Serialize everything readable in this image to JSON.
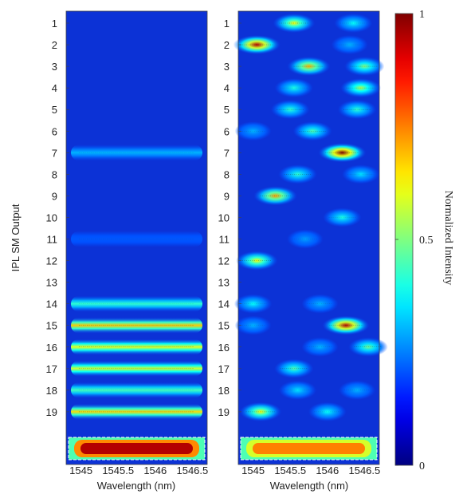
{
  "chart_data": [
    {
      "type": "heatmap",
      "ylabel": "IPL SM Output",
      "xlabel": "Wavelength (nm)",
      "xlim": [
        1544.8,
        1546.7
      ],
      "x_ticks": [
        "1545",
        "1545.5",
        "1546",
        "1546.5"
      ],
      "x_tick_values": [
        1545,
        1545.5,
        1546,
        1546.5
      ],
      "rows": [
        "1",
        "2",
        "3",
        "4",
        "5",
        "6",
        "7",
        "8",
        "9",
        "10",
        "11",
        "12",
        "13",
        "14",
        "15",
        "16",
        "17",
        "18",
        "19"
      ],
      "intensity_by_row": [
        0.2,
        0.2,
        0.2,
        0.2,
        0.2,
        0.2,
        0.3,
        0.2,
        0.2,
        0.2,
        0.21,
        0.2,
        0.2,
        0.42,
        0.68,
        0.6,
        0.58,
        0.44,
        0.66
      ],
      "reference_band_intensity": 0.95
    },
    {
      "type": "heatmap",
      "xlabel": "Wavelength (nm)",
      "xlim": [
        1544.8,
        1546.7
      ],
      "x_ticks": [
        "1545",
        "1545.5",
        "1546",
        "1546.5"
      ],
      "x_tick_values": [
        1545,
        1545.5,
        1546,
        1546.5
      ],
      "rows": [
        "1",
        "2",
        "3",
        "4",
        "5",
        "6",
        "7",
        "8",
        "9",
        "10",
        "11",
        "12",
        "13",
        "14",
        "15",
        "16",
        "17",
        "18",
        "19"
      ],
      "peaks": [
        {
          "row": 1,
          "wavelength": 1545.55,
          "intensity": 0.62
        },
        {
          "row": 1,
          "wavelength": 1546.35,
          "intensity": 0.38
        },
        {
          "row": 2,
          "wavelength": 1545.05,
          "intensity": 0.95
        },
        {
          "row": 2,
          "wavelength": 1546.3,
          "intensity": 0.3
        },
        {
          "row": 3,
          "wavelength": 1545.75,
          "intensity": 0.7
        },
        {
          "row": 3,
          "wavelength": 1546.5,
          "intensity": 0.5
        },
        {
          "row": 4,
          "wavelength": 1545.55,
          "intensity": 0.4
        },
        {
          "row": 4,
          "wavelength": 1546.45,
          "intensity": 0.55
        },
        {
          "row": 5,
          "wavelength": 1545.5,
          "intensity": 0.42
        },
        {
          "row": 5,
          "wavelength": 1546.4,
          "intensity": 0.42
        },
        {
          "row": 6,
          "wavelength": 1545.8,
          "intensity": 0.45
        },
        {
          "row": 6,
          "wavelength": 1545.0,
          "intensity": 0.3
        },
        {
          "row": 7,
          "wavelength": 1546.2,
          "intensity": 1.0
        },
        {
          "row": 8,
          "wavelength": 1545.6,
          "intensity": 0.42
        },
        {
          "row": 8,
          "wavelength": 1546.45,
          "intensity": 0.35
        },
        {
          "row": 9,
          "wavelength": 1545.3,
          "intensity": 0.72
        },
        {
          "row": 10,
          "wavelength": 1546.2,
          "intensity": 0.4
        },
        {
          "row": 11,
          "wavelength": 1545.7,
          "intensity": 0.28
        },
        {
          "row": 12,
          "wavelength": 1545.05,
          "intensity": 0.62
        },
        {
          "row": 14,
          "wavelength": 1545.0,
          "intensity": 0.38
        },
        {
          "row": 14,
          "wavelength": 1545.9,
          "intensity": 0.3
        },
        {
          "row": 15,
          "wavelength": 1546.25,
          "intensity": 0.95
        },
        {
          "row": 15,
          "wavelength": 1545.0,
          "intensity": 0.3
        },
        {
          "row": 16,
          "wavelength": 1546.55,
          "intensity": 0.48
        },
        {
          "row": 16,
          "wavelength": 1545.9,
          "intensity": 0.3
        },
        {
          "row": 17,
          "wavelength": 1545.55,
          "intensity": 0.45
        },
        {
          "row": 18,
          "wavelength": 1545.6,
          "intensity": 0.35
        },
        {
          "row": 18,
          "wavelength": 1546.4,
          "intensity": 0.3
        },
        {
          "row": 19,
          "wavelength": 1545.1,
          "intensity": 0.62
        },
        {
          "row": 19,
          "wavelength": 1546.0,
          "intensity": 0.38
        }
      ],
      "reference_band_intensity": 0.75
    }
  ],
  "colorbar": {
    "label": "Normalized Intensity",
    "ticks": [
      {
        "value": 0,
        "label": "0"
      },
      {
        "value": 0.5,
        "label": "0.5"
      },
      {
        "value": 1,
        "label": "1"
      }
    ],
    "colormap": "jet"
  }
}
